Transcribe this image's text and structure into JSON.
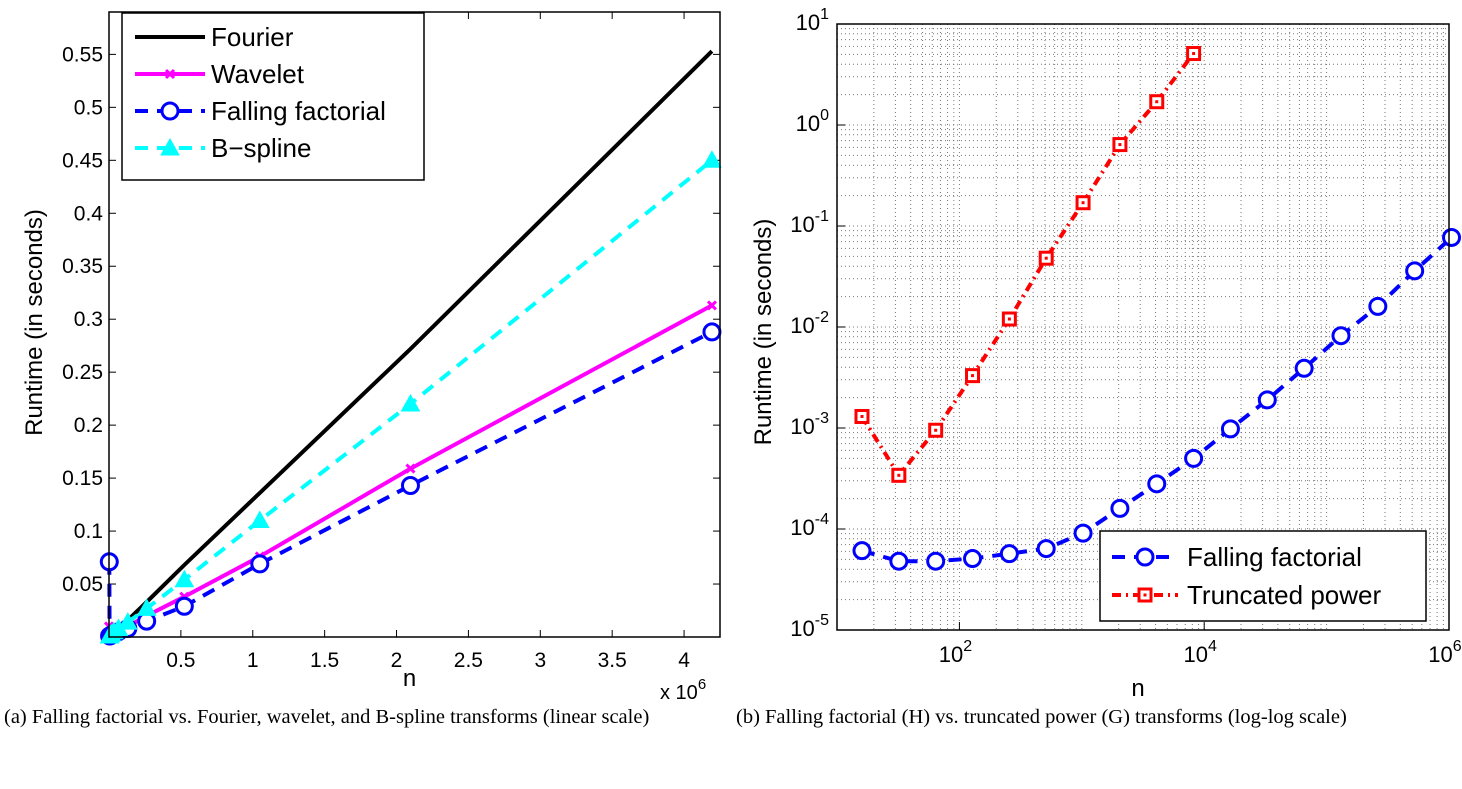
{
  "chart_data": [
    {
      "type": "line",
      "scale": "linear",
      "xlabel": "n",
      "ylabel": "Runtime (in seconds)",
      "x_multiplier_label": "x 10",
      "x_multiplier_exp": "6",
      "xlim": [
        0,
        4.25
      ],
      "ylim": [
        0,
        0.59
      ],
      "xticks": [
        0.5,
        1,
        1.5,
        2,
        2.5,
        3,
        3.5,
        4
      ],
      "xtick_labels": [
        "0.5",
        "1",
        "1.5",
        "2",
        "2.5",
        "3",
        "3.5",
        "4"
      ],
      "yticks": [
        0.05,
        0.1,
        0.15,
        0.2,
        0.25,
        0.3,
        0.35,
        0.4,
        0.45,
        0.5,
        0.55
      ],
      "ytick_labels": [
        "0.05",
        "0.1",
        "0.15",
        "0.2",
        "0.25",
        "0.3",
        "0.35",
        "0.4",
        "0.45",
        "0.5",
        "0.55"
      ],
      "legend_position": "top-left",
      "series": [
        {
          "name": "Fourier",
          "color": "#000000",
          "style": "solid",
          "marker": "none",
          "x": [
            0,
            0.008,
            0.016,
            0.033,
            0.066,
            0.131,
            0.262,
            0.524,
            1.049,
            2.097,
            4.194
          ],
          "y": [
            0.0005,
            0.001,
            0.002,
            0.004,
            0.008,
            0.016,
            0.033,
            0.068,
            0.136,
            0.272,
            0.553
          ]
        },
        {
          "name": "Wavelet",
          "color": "#ff00ff",
          "style": "solid",
          "marker": "x",
          "x": [
            0,
            0.008,
            0.016,
            0.033,
            0.066,
            0.131,
            0.262,
            0.524,
            1.049,
            2.097,
            4.194
          ],
          "y": [
            0.01,
            0.002,
            0.002,
            0.003,
            0.005,
            0.01,
            0.02,
            0.038,
            0.076,
            0.159,
            0.313
          ]
        },
        {
          "name": "Falling factorial",
          "color": "#0000ff",
          "style": "dashed",
          "marker": "circle",
          "x": [
            0.002,
            0.004,
            0.008,
            0.016,
            0.033,
            0.066,
            0.131,
            0.262,
            0.524,
            1.049,
            2.097,
            4.194
          ],
          "y": [
            0.071,
            0.001,
            0.001,
            0.002,
            0.003,
            0.005,
            0.008,
            0.015,
            0.029,
            0.069,
            0.143,
            0.288
          ]
        },
        {
          "name": "B−spline",
          "color": "#00ffff",
          "style": "dashed",
          "marker": "triangle",
          "x": [
            0.004,
            0.008,
            0.016,
            0.033,
            0.066,
            0.131,
            0.262,
            0.524,
            1.049,
            2.097,
            4.194
          ],
          "y": [
            0.001,
            0.002,
            0.003,
            0.005,
            0.008,
            0.014,
            0.027,
            0.054,
            0.11,
            0.22,
            0.45
          ]
        }
      ]
    },
    {
      "type": "line",
      "scale": "log-log",
      "xlabel": "n",
      "ylabel": "Runtime (in seconds)",
      "xlim_log10": [
        1,
        6
      ],
      "ylim_log10": [
        -5,
        1
      ],
      "xticks_log10": [
        2,
        4,
        6
      ],
      "xtick_labels": [
        {
          "base": "10",
          "exp": "2"
        },
        {
          "base": "10",
          "exp": "4"
        },
        {
          "base": "10",
          "exp": "6"
        }
      ],
      "yticks_log10": [
        -5,
        -4,
        -3,
        -2,
        -1,
        0,
        1
      ],
      "ytick_labels": [
        {
          "base": "10",
          "exp": "-5"
        },
        {
          "base": "10",
          "exp": "-4"
        },
        {
          "base": "10",
          "exp": "-3"
        },
        {
          "base": "10",
          "exp": "-2"
        },
        {
          "base": "10",
          "exp": "-1"
        },
        {
          "base": "10",
          "exp": "0"
        },
        {
          "base": "10",
          "exp": "1"
        }
      ],
      "grid": "dotted",
      "legend_position": "bottom-right",
      "series": [
        {
          "name": "Falling factorial",
          "color": "#0000ff",
          "style": "dashed",
          "marker": "circle",
          "x": [
            16,
            32,
            64,
            128,
            256,
            512,
            1024,
            2048,
            4096,
            8192,
            16384,
            32768,
            65536,
            131072,
            262144,
            524288,
            1048576
          ],
          "y": [
            6.1e-05,
            4.8e-05,
            4.8e-05,
            5.1e-05,
            5.7e-05,
            6.4e-05,
            9.1e-05,
            0.00016,
            0.00028,
            0.0005,
            0.00098,
            0.0019,
            0.0039,
            0.0082,
            0.016,
            0.036,
            0.077
          ]
        },
        {
          "name": "Truncated power",
          "color": "#ff0000",
          "style": "dashdot",
          "marker": "square",
          "x": [
            16,
            32,
            64,
            128,
            256,
            512,
            1024,
            2048,
            4096,
            8192
          ],
          "y": [
            0.0013,
            0.00034,
            0.00095,
            0.0033,
            0.012,
            0.048,
            0.17,
            0.64,
            1.7,
            5.1
          ]
        }
      ]
    }
  ],
  "captions": {
    "a": "(a)  Falling factorial vs. Fourier, wavelet, and B-spline transforms (linear scale)",
    "b": "(b)  Falling factorial (H) vs. truncated power (G) transforms (log-log scale)"
  }
}
